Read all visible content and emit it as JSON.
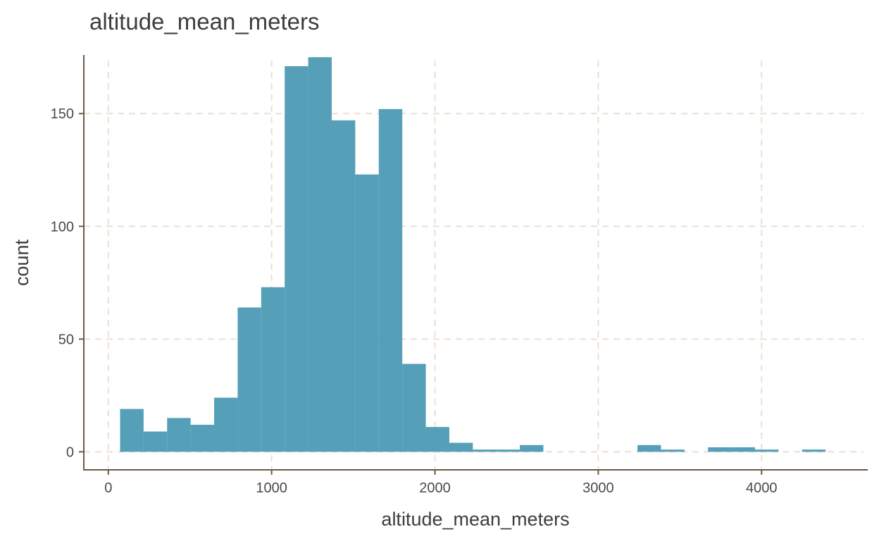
{
  "chart_data": {
    "type": "bar",
    "title": "altitude_mean_meters",
    "xlabel": "altitude_mean_meters",
    "ylabel": "count",
    "xlim": [
      -150,
      4650
    ],
    "ylim": [
      -8,
      176
    ],
    "xticks": [
      0,
      1000,
      2000,
      3000,
      4000
    ],
    "yticks": [
      0,
      50,
      100,
      150
    ],
    "grid": true,
    "bin_width": 144,
    "bins": [
      {
        "x0": 72,
        "x1": 216,
        "count": 19
      },
      {
        "x0": 216,
        "x1": 360,
        "count": 9
      },
      {
        "x0": 360,
        "x1": 504,
        "count": 15
      },
      {
        "x0": 504,
        "x1": 648,
        "count": 12
      },
      {
        "x0": 648,
        "x1": 792,
        "count": 24
      },
      {
        "x0": 792,
        "x1": 936,
        "count": 64
      },
      {
        "x0": 936,
        "x1": 1080,
        "count": 73
      },
      {
        "x0": 1080,
        "x1": 1224,
        "count": 171
      },
      {
        "x0": 1224,
        "x1": 1368,
        "count": 175
      },
      {
        "x0": 1368,
        "x1": 1512,
        "count": 147
      },
      {
        "x0": 1512,
        "x1": 1656,
        "count": 123
      },
      {
        "x0": 1656,
        "x1": 1800,
        "count": 152
      },
      {
        "x0": 1800,
        "x1": 1944,
        "count": 39
      },
      {
        "x0": 1944,
        "x1": 2088,
        "count": 11
      },
      {
        "x0": 2088,
        "x1": 2232,
        "count": 4
      },
      {
        "x0": 2232,
        "x1": 2376,
        "count": 1
      },
      {
        "x0": 2376,
        "x1": 2520,
        "count": 1
      },
      {
        "x0": 2520,
        "x1": 2664,
        "count": 3
      },
      {
        "x0": 2664,
        "x1": 2808,
        "count": 0
      },
      {
        "x0": 2808,
        "x1": 2952,
        "count": 0
      },
      {
        "x0": 2952,
        "x1": 3096,
        "count": 0
      },
      {
        "x0": 3096,
        "x1": 3240,
        "count": 0
      },
      {
        "x0": 3240,
        "x1": 3384,
        "count": 3
      },
      {
        "x0": 3384,
        "x1": 3528,
        "count": 1
      },
      {
        "x0": 3528,
        "x1": 3672,
        "count": 0
      },
      {
        "x0": 3672,
        "x1": 3816,
        "count": 2
      },
      {
        "x0": 3816,
        "x1": 3960,
        "count": 2
      },
      {
        "x0": 3960,
        "x1": 4104,
        "count": 1
      },
      {
        "x0": 4104,
        "x1": 4248,
        "count": 0
      },
      {
        "x0": 4248,
        "x1": 4392,
        "count": 1
      }
    ],
    "colors": {
      "bar": "#559fb8",
      "grid": "#ecdfd3",
      "axis": "#6a5a45"
    }
  }
}
